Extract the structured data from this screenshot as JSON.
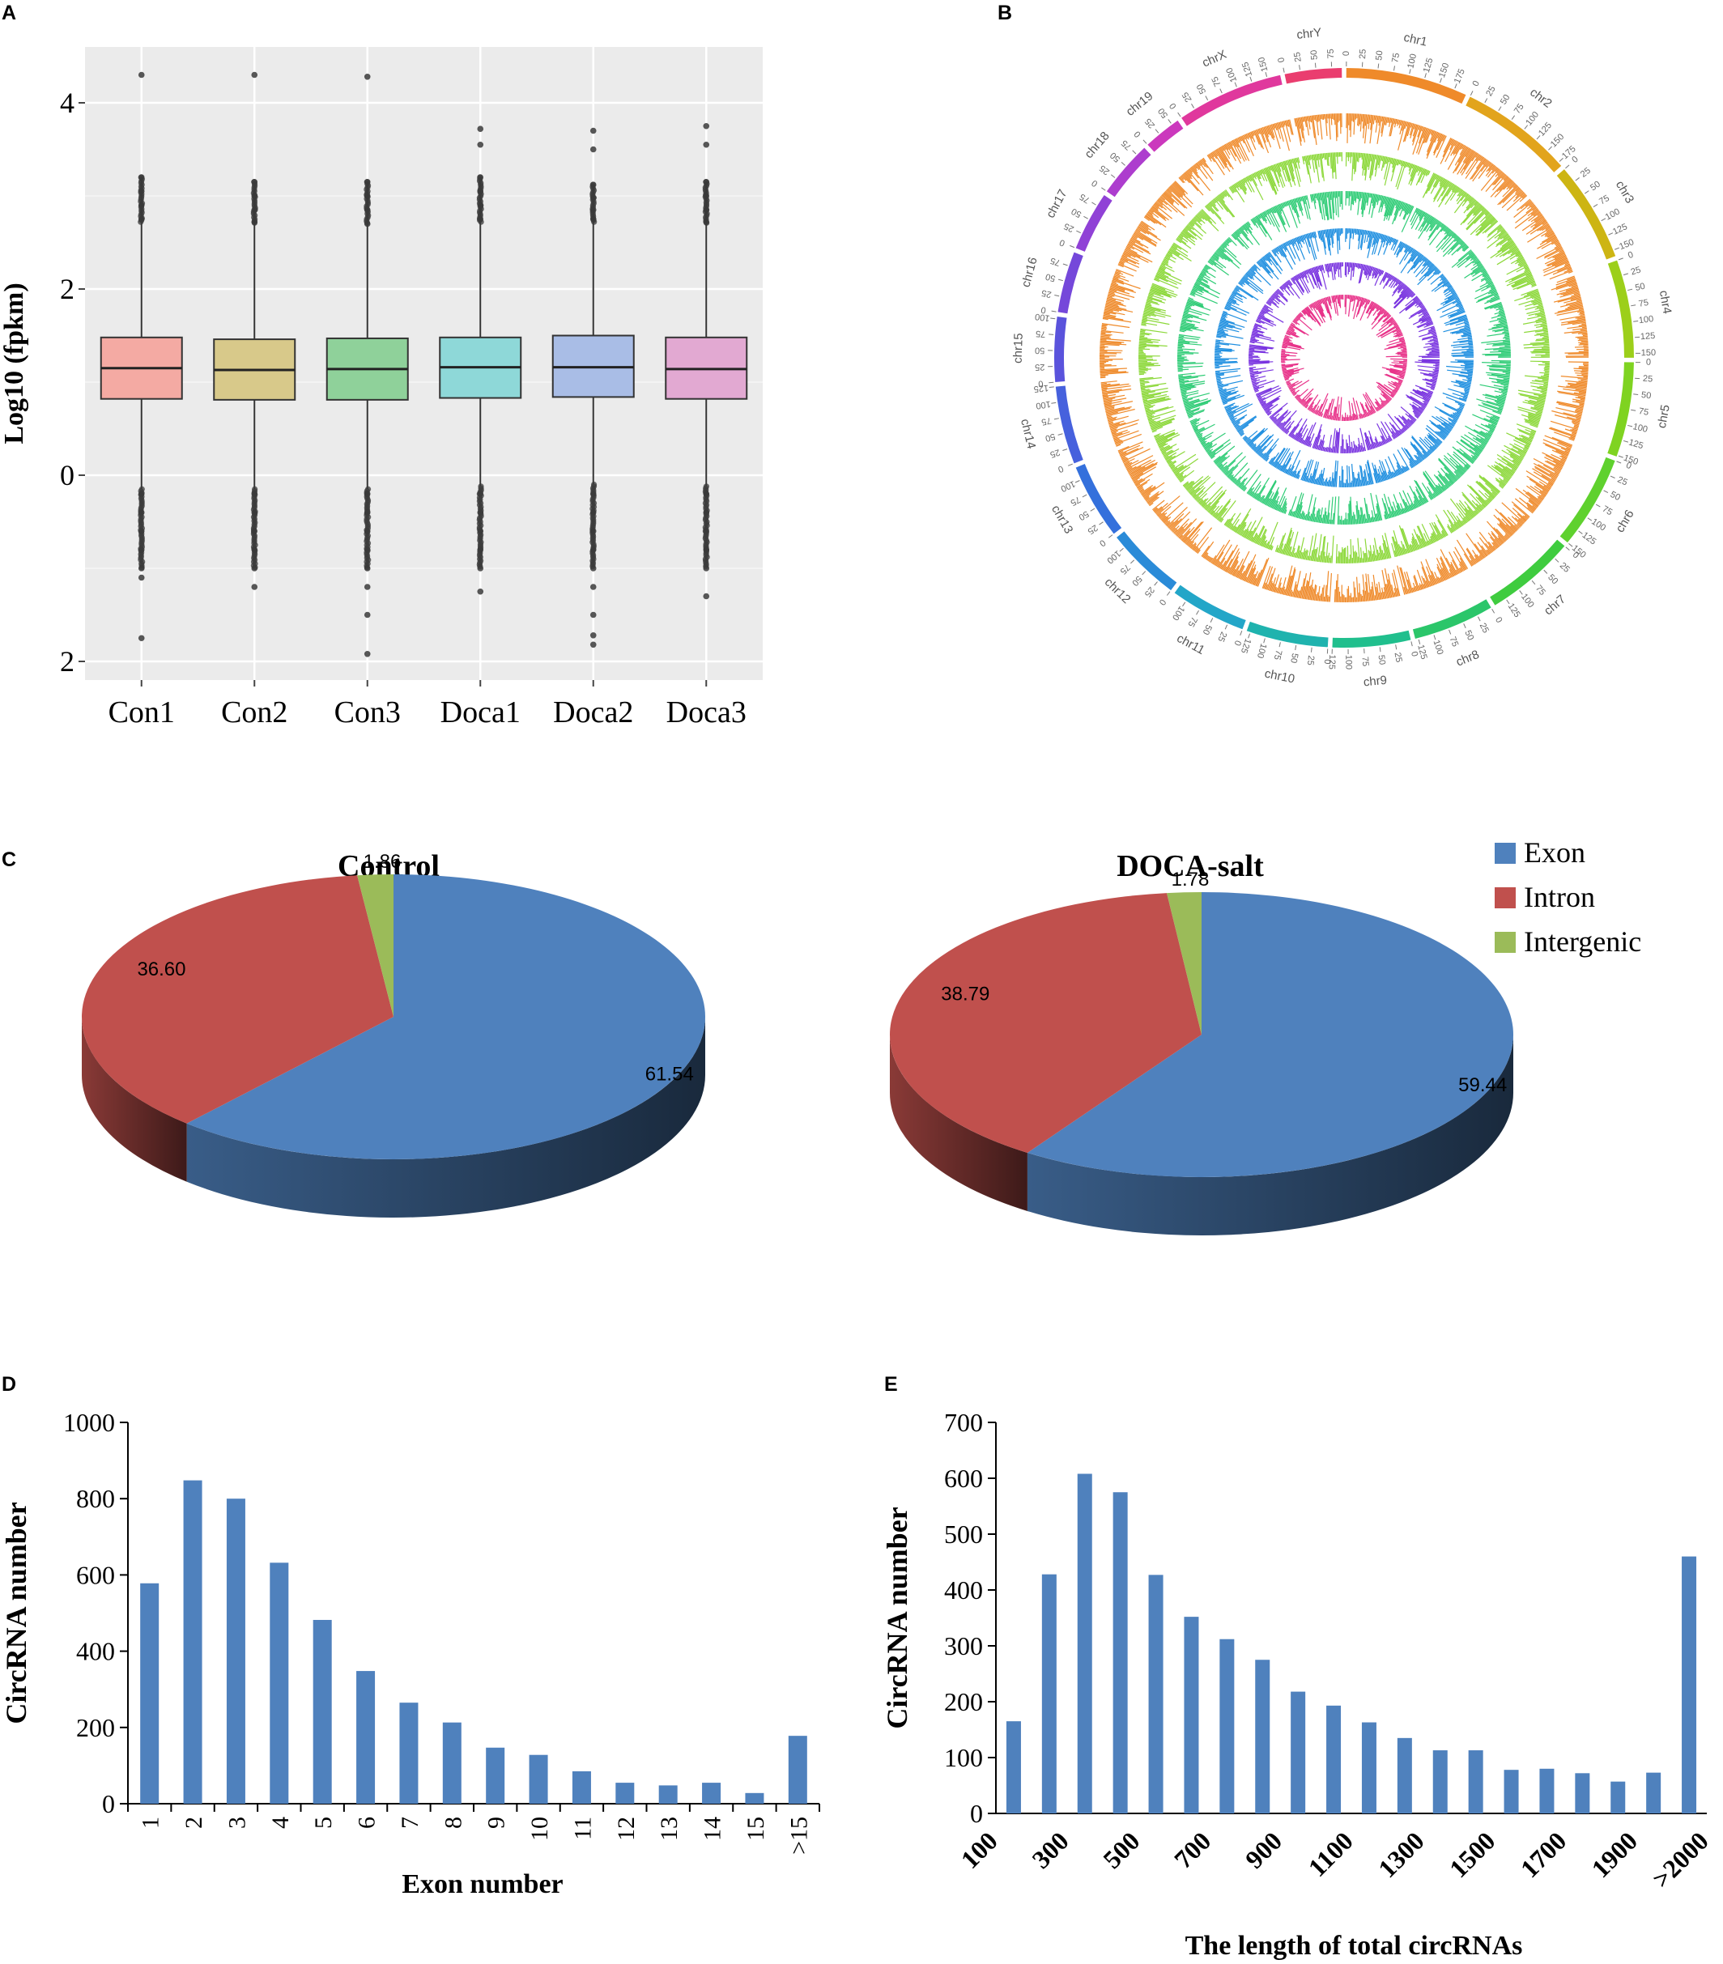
{
  "panels": {
    "a": "A",
    "b": "B",
    "c": "C",
    "d": "D",
    "e": "E"
  },
  "chart_data": [
    {
      "panel": "A",
      "type": "box",
      "title": "",
      "xlabel": "",
      "ylabel": "Log10 (fpkm)",
      "ylim": [
        -2.2,
        4.6
      ],
      "yticks": [
        4,
        2,
        0,
        -2
      ],
      "ytick_labels": [
        "4",
        "2",
        "0",
        "2"
      ],
      "grid": true,
      "categories": [
        "Con1",
        "Con2",
        "Con3",
        "Doca1",
        "Doca2",
        "Doca3"
      ],
      "colors": [
        "#f4aaa3",
        "#d8c98a",
        "#8fd19a",
        "#8ed8d8",
        "#a9bde6",
        "#e2a9d2"
      ],
      "boxes": [
        {
          "q1": 0.82,
          "median": 1.15,
          "q3": 1.48,
          "whisker_low": -0.15,
          "whisker_high": 3.2,
          "out_high": [
            3.2,
            3.05,
            2.9,
            2.75,
            4.3
          ],
          "out_low": [
            -0.2,
            -0.4,
            -0.6,
            -0.8,
            -1.0,
            -1.1,
            -1.75
          ]
        },
        {
          "q1": 0.81,
          "median": 1.13,
          "q3": 1.46,
          "whisker_low": -0.15,
          "whisker_high": 3.15,
          "out_high": [
            3.15,
            3.0,
            2.85,
            2.72,
            4.3
          ],
          "out_low": [
            -0.2,
            -0.4,
            -0.6,
            -0.8,
            -1.0,
            -1.2
          ]
        },
        {
          "q1": 0.81,
          "median": 1.14,
          "q3": 1.47,
          "whisker_low": -0.15,
          "whisker_high": 3.15,
          "out_high": [
            3.15,
            3.0,
            2.85,
            2.7,
            4.28
          ],
          "out_low": [
            -0.2,
            -0.4,
            -0.6,
            -0.8,
            -1.0,
            -1.2,
            -1.5,
            -1.92
          ]
        },
        {
          "q1": 0.83,
          "median": 1.16,
          "q3": 1.48,
          "whisker_low": -0.12,
          "whisker_high": 3.2,
          "out_high": [
            3.2,
            3.05,
            2.9,
            2.75,
            3.55,
            3.72
          ],
          "out_low": [
            -0.2,
            -0.4,
            -0.6,
            -0.8,
            -1.0,
            -1.25
          ]
        },
        {
          "q1": 0.84,
          "median": 1.16,
          "q3": 1.5,
          "whisker_low": -0.1,
          "whisker_high": 3.12,
          "out_high": [
            3.12,
            2.98,
            2.85,
            2.75,
            3.5,
            3.7
          ],
          "out_low": [
            -0.2,
            -0.4,
            -0.6,
            -0.8,
            -1.0,
            -1.2,
            -1.5,
            -1.72,
            -1.82
          ]
        },
        {
          "q1": 0.82,
          "median": 1.14,
          "q3": 1.48,
          "whisker_low": -0.12,
          "whisker_high": 3.15,
          "out_high": [
            3.15,
            3.0,
            2.85,
            2.72,
            3.55,
            3.75
          ],
          "out_low": [
            -0.2,
            -0.4,
            -0.6,
            -0.8,
            -1.0,
            -1.3
          ]
        }
      ]
    },
    {
      "panel": "B",
      "type": "circos",
      "chromosomes": [
        "chr1",
        "chr2",
        "chr3",
        "chr4",
        "chr5",
        "chr6",
        "chr7",
        "chr8",
        "chr9",
        "chr10",
        "chr11",
        "chr12",
        "chr13",
        "chr14",
        "chr15",
        "chr16",
        "chr17",
        "chr18",
        "chr19",
        "chrX",
        "chrY"
      ],
      "sizes": [
        195,
        182,
        160,
        157,
        152,
        150,
        145,
        130,
        125,
        131,
        122,
        120,
        121,
        125,
        104,
        98,
        95,
        91,
        61,
        171,
        91
      ],
      "colors": [
        "#ef8a2a",
        "#e2a41c",
        "#cdb513",
        "#9ccf1a",
        "#7fd321",
        "#5fd12e",
        "#3fcc3f",
        "#2bc66a",
        "#20bf8d",
        "#1fb3ae",
        "#23a6c8",
        "#2a8bd8",
        "#3470dc",
        "#4661dd",
        "#5a53dc",
        "#7548da",
        "#9041d6",
        "#ad3dce",
        "#cb38bd",
        "#e0389d",
        "#ea3d6f"
      ],
      "tick_labels": [
        "0",
        "25",
        "50",
        "75",
        "100",
        "125",
        "150",
        "175"
      ],
      "track_colors": [
        "#ef8a2a",
        "#8cd83a",
        "#2fcc76",
        "#1f8fe0",
        "#7a35e0",
        "#e8338a"
      ]
    },
    {
      "panel": "C",
      "type": "pie",
      "legend": [
        "Exon",
        "Intron",
        "Intergenic"
      ],
      "legend_position": "top-right",
      "colors": [
        "#4f81bd",
        "#c0504d",
        "#9bbb59"
      ],
      "charts": [
        {
          "title": "Control",
          "values": [
            61.54,
            36.6,
            1.86
          ],
          "labels": [
            "61.54",
            "36.60",
            "1.86"
          ]
        },
        {
          "title": "DOCA-salt",
          "values": [
            59.44,
            38.79,
            1.78
          ],
          "labels": [
            "59.44",
            "38.79",
            "1.78"
          ]
        }
      ]
    },
    {
      "panel": "D",
      "type": "bar",
      "xlabel": "Exon number",
      "ylabel": "CircRNA number",
      "ylim": [
        0,
        1000
      ],
      "yticks": [
        0,
        200,
        400,
        600,
        800,
        1000
      ],
      "categories": [
        "1",
        "2",
        "3",
        "4",
        "5",
        "6",
        "7",
        "8",
        "9",
        "10",
        "11",
        "12",
        "13",
        "14",
        "15",
        ">15"
      ],
      "values": [
        578,
        848,
        800,
        632,
        482,
        348,
        265,
        213,
        147,
        128,
        85,
        55,
        48,
        55,
        28,
        178
      ],
      "color": "#4f81bd"
    },
    {
      "panel": "E",
      "type": "bar",
      "xlabel": "The length of total circRNAs",
      "ylabel": "CircRNA number",
      "ylim": [
        0,
        700
      ],
      "yticks": [
        0,
        100,
        200,
        300,
        400,
        500,
        600,
        700
      ],
      "xtick_labels": [
        "100",
        "300",
        "500",
        "700",
        "900",
        "1100",
        "1300",
        "1500",
        "1700",
        "1900",
        ">2000"
      ],
      "values": [
        165,
        428,
        608,
        575,
        427,
        352,
        312,
        275,
        218,
        193,
        163,
        135,
        113,
        113,
        78,
        80,
        72,
        57,
        73,
        460
      ],
      "color": "#4f81bd"
    }
  ]
}
